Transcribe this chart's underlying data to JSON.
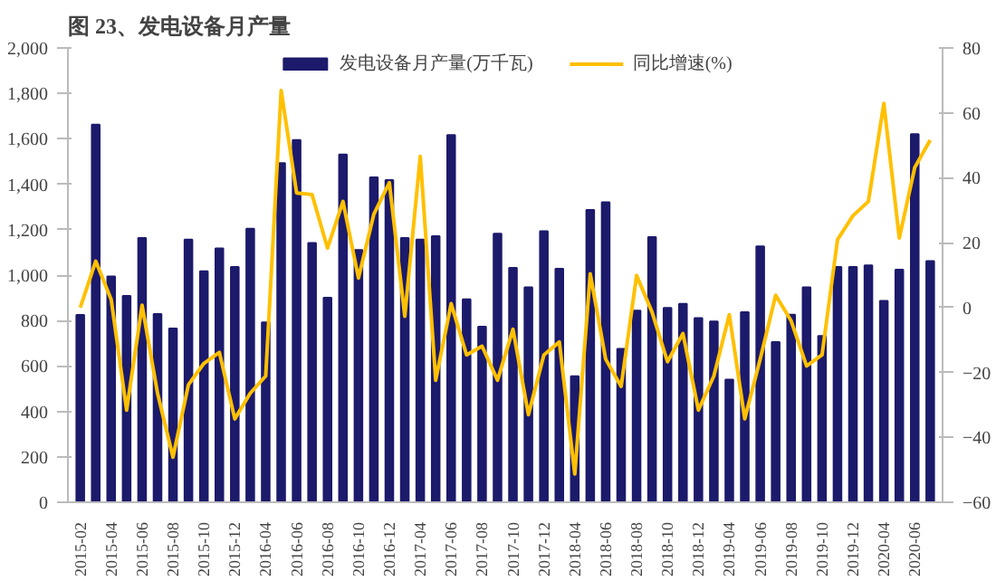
{
  "chart_data": {
    "type": "bar",
    "title": "图 23、发电设备月产量",
    "categories": [
      "2015-02",
      null,
      "2015-04",
      null,
      "2015-06",
      null,
      "2015-08",
      null,
      "2015-10",
      null,
      "2015-12",
      null,
      "2016-04",
      null,
      "2016-06",
      null,
      "2016-08",
      null,
      "2016-10",
      null,
      "2016-12",
      null,
      "2017-04",
      null,
      "2017-06",
      null,
      "2017-08",
      null,
      "2017-10",
      null,
      "2017-12",
      null,
      "2018-04",
      null,
      "2018-06",
      null,
      "2018-08",
      null,
      "2018-10",
      null,
      "2018-12",
      null,
      "2019-04",
      null,
      "2019-06",
      null,
      "2019-08",
      null,
      "2019-10",
      null,
      "2019-12",
      null,
      "2020-04",
      null,
      "2020-06",
      null
    ],
    "series": [
      {
        "name": "发电设备月产量(万千瓦)",
        "color": "#1c1a6b",
        "values": [
          825,
          1662,
          994,
          908,
          1163,
          829,
          765,
          1156,
          1017,
          1118,
          1036,
          1204,
          792,
          1493,
          1595,
          1141,
          900,
          1531,
          1111,
          1430,
          1418,
          1163,
          1156,
          1171,
          1617,
          893,
          773,
          1182,
          1032,
          946,
          1193,
          1028,
          555,
          1287,
          1321,
          675,
          844,
          1167,
          856,
          874,
          811,
          796,
          540,
          837,
          1126,
          705,
          826,
          946,
          732,
          1036,
          1036,
          1043,
          886,
          1024,
          1621,
          1062
        ]
      },
      {
        "name": "同比增速(%)",
        "type": "line",
        "axis": "y2",
        "color": "#ffc000",
        "values": [
          0,
          14.3,
          2.5,
          -31.6,
          0.7,
          -26.4,
          -46.1,
          -23.8,
          -17.2,
          -13.8,
          -34.3,
          -26.4,
          -21.1,
          66.9,
          35.3,
          34.8,
          18.3,
          32.7,
          9.1,
          28.8,
          38.5,
          -2.7,
          46.6,
          -22.4,
          1.2,
          -14.6,
          -11.9,
          -22.4,
          -6.7,
          -33,
          -14.6,
          -10.6,
          -51.3,
          10.4,
          -15.9,
          -24.3,
          9.9,
          -1.4,
          -16.7,
          -8,
          -31.6,
          -21.1,
          -2.2,
          -34.3,
          -15.9,
          3.8,
          -4.1,
          -18,
          -14.6,
          20.9,
          28.3,
          32.7,
          62.9,
          21.4,
          43.2,
          51.6
        ]
      }
    ],
    "ylim": [
      0,
      2000
    ],
    "yticks": [
      0,
      200,
      400,
      600,
      800,
      {
        "value": 1000,
        "label": "1,000"
      },
      {
        "value": 1200,
        "label": "1,200"
      },
      {
        "value": 1400,
        "label": "1,400"
      },
      {
        "value": 1600,
        "label": "1,600"
      },
      {
        "value": 1800,
        "label": "1,800"
      },
      {
        "value": 2000,
        "label": "2,000"
      }
    ],
    "y2lim": [
      -60,
      80
    ],
    "y2ticks": [
      -60,
      -40,
      -20,
      0,
      20,
      40,
      60,
      80
    ],
    "grid": false,
    "legend": "top",
    "line_style": "solid"
  }
}
